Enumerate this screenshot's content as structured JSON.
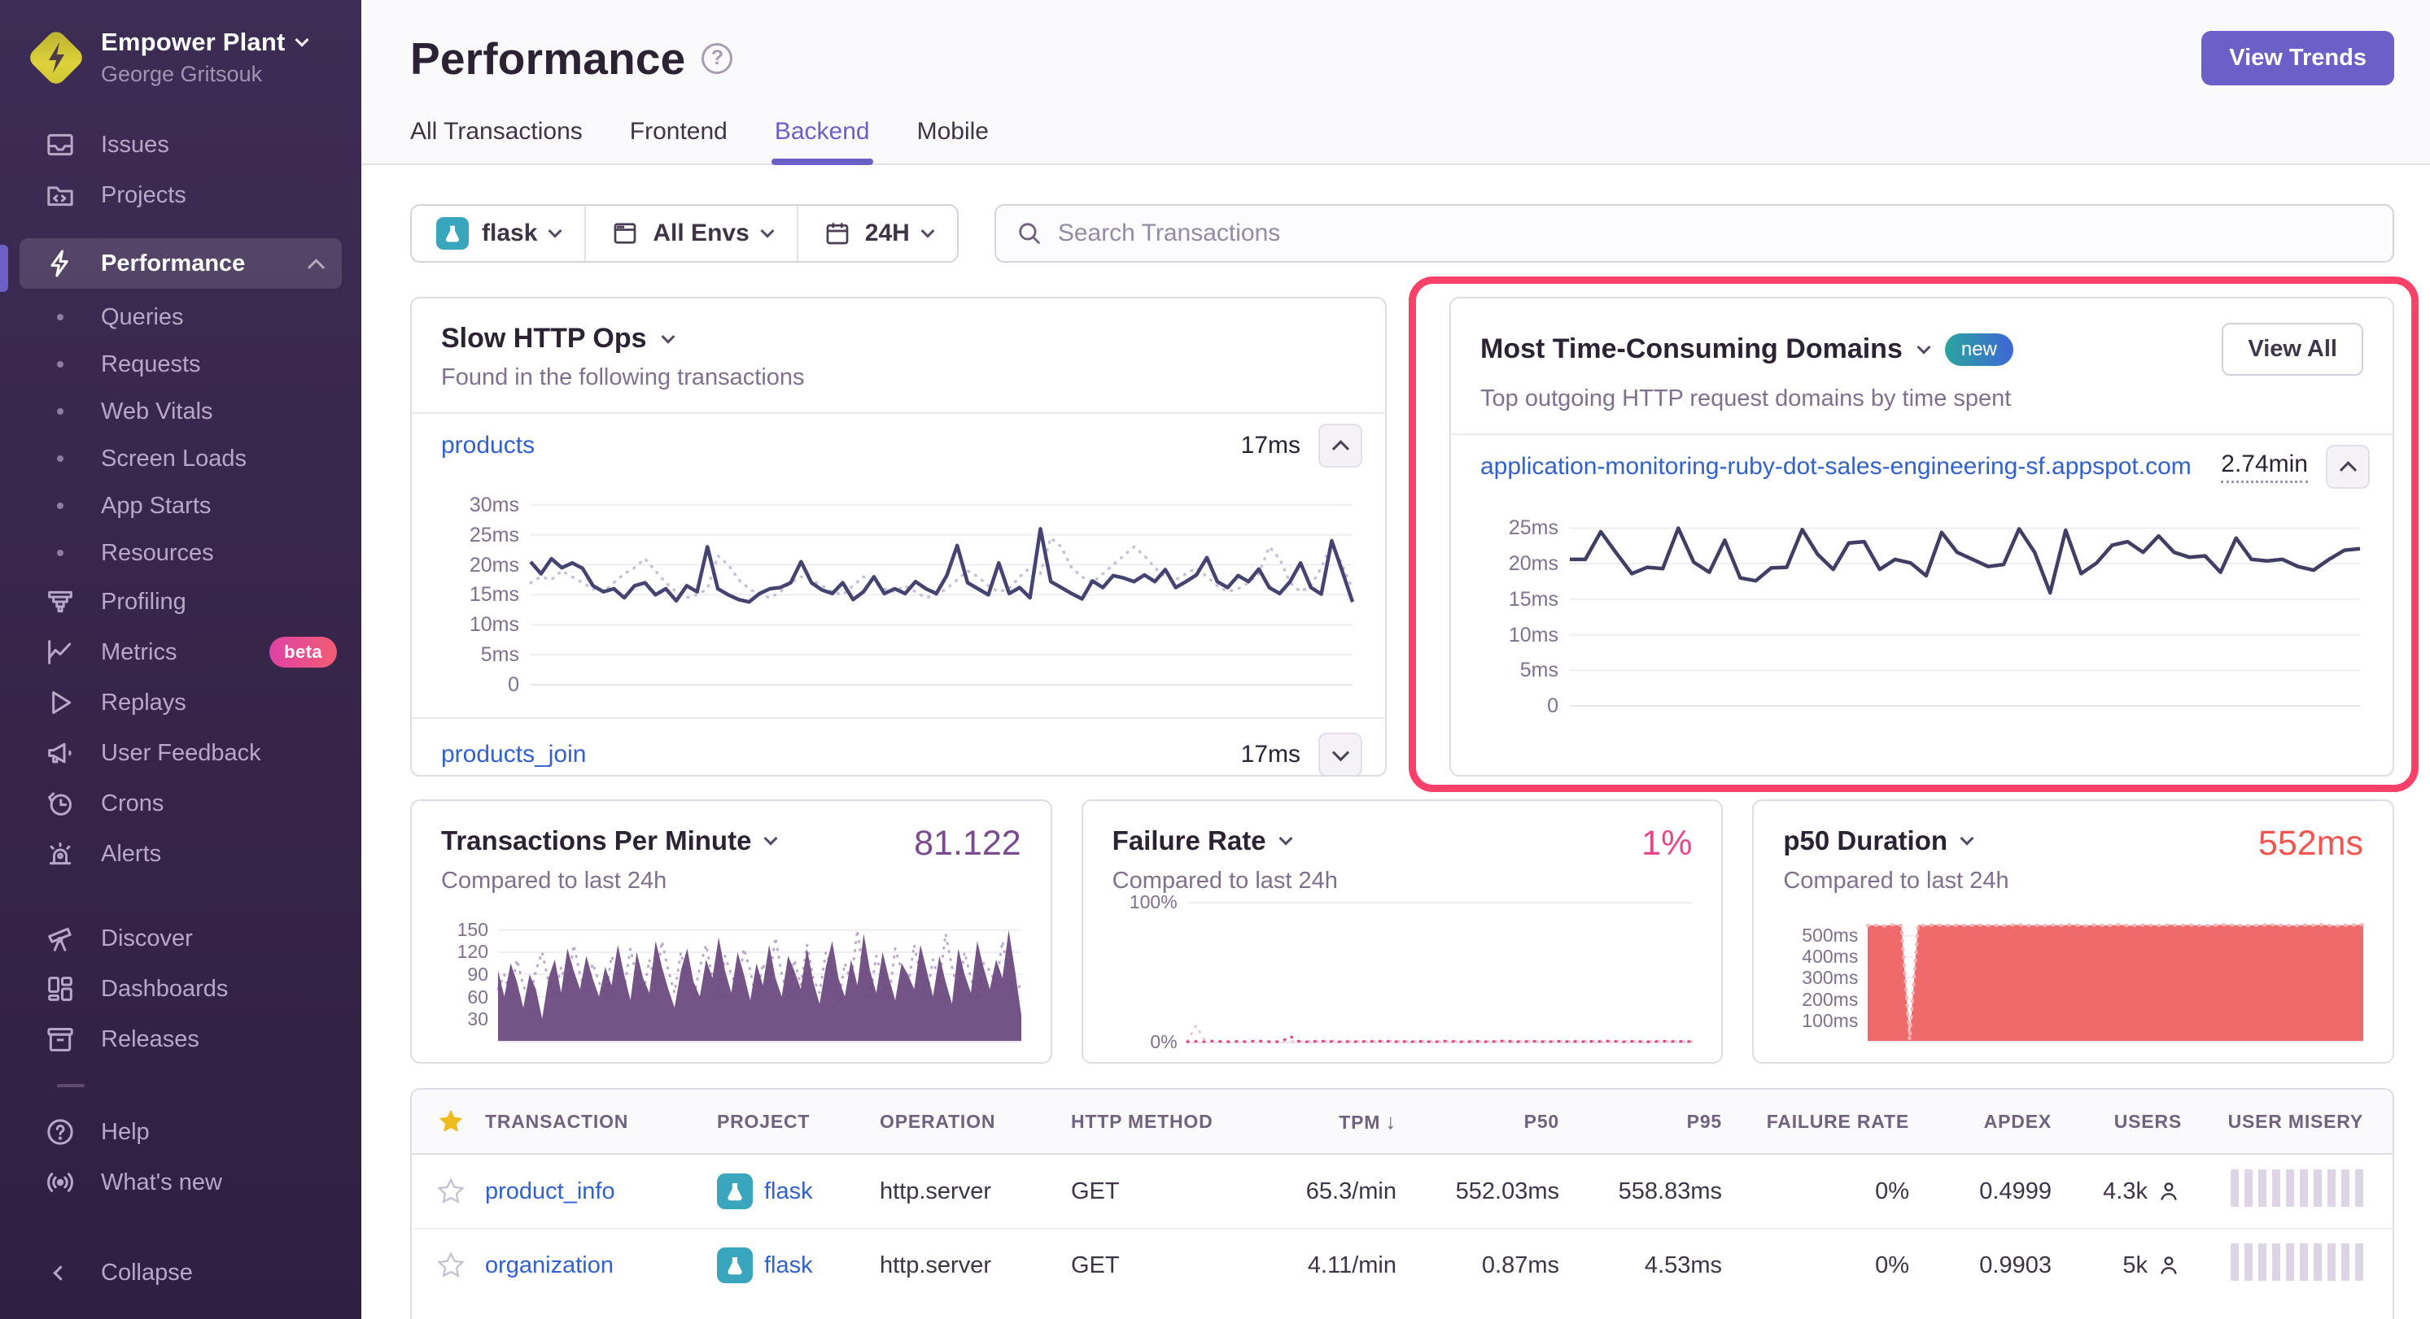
{
  "colors": {
    "accent": "#6C5FC7",
    "annotation": "#fb4168",
    "link": "#3161d1",
    "sidebar_bg": "#362549",
    "chart_line": "#454371",
    "chart_prev": "#c9bfd8",
    "tpm_fill": "#6d4a80",
    "failure_pink": "#e1407c",
    "p50_red": "#ee5d5d"
  },
  "sidebar": {
    "org_name": "Empower Plant",
    "user_name": "George Gritsouk",
    "items": {
      "issues": "Issues",
      "projects": "Projects",
      "performance": "Performance",
      "queries": "Queries",
      "requests": "Requests",
      "web_vitals": "Web Vitals",
      "screen_loads": "Screen Loads",
      "app_starts": "App Starts",
      "resources": "Resources",
      "profiling": "Profiling",
      "metrics": "Metrics",
      "metrics_badge": "beta",
      "replays": "Replays",
      "user_feedback": "User Feedback",
      "crons": "Crons",
      "alerts": "Alerts",
      "discover": "Discover",
      "dashboards": "Dashboards",
      "releases": "Releases",
      "help": "Help",
      "whats_new": "What's new",
      "collapse": "Collapse"
    }
  },
  "header": {
    "title": "Performance",
    "view_trends": "View Trends",
    "tabs": [
      "All Transactions",
      "Frontend",
      "Backend",
      "Mobile"
    ],
    "active_tab": "Backend"
  },
  "filters": {
    "project": "flask",
    "env": "All Envs",
    "period": "24H",
    "search_placeholder": "Search Transactions"
  },
  "slow_http": {
    "title": "Slow HTTP Ops",
    "subtitle": "Found in the following transactions",
    "rows": [
      {
        "name": "products",
        "value": "17ms"
      },
      {
        "name": "products_join",
        "value": "17ms"
      }
    ],
    "chart": {
      "type": "line",
      "ymax": 32,
      "yticks": [
        {
          "value": 30,
          "label": "30ms"
        },
        {
          "value": 25,
          "label": "25ms"
        },
        {
          "value": 20,
          "label": "20ms"
        },
        {
          "value": 15,
          "label": "15ms"
        },
        {
          "value": 10,
          "label": "10ms"
        },
        {
          "value": 5,
          "label": "5ms"
        },
        {
          "value": 0,
          "label": "0"
        }
      ],
      "series": [
        {
          "name": "previous period",
          "dashed": true,
          "color": "#c9bfd8",
          "width": 3.5,
          "values": [
            17,
            18,
            17.5,
            19,
            18,
            17,
            16,
            15.5,
            17,
            18.5,
            19.5,
            21,
            19,
            17,
            15.5,
            14.5,
            15,
            16,
            21.5,
            20,
            17.5,
            16,
            15,
            14.5,
            15.5,
            17,
            18,
            17.5,
            16.5,
            15.5,
            15,
            16.5,
            18,
            17,
            16,
            15.5,
            16.5,
            15.5,
            14.5,
            15,
            16,
            17.5,
            19,
            18,
            16.5,
            15.5,
            16,
            18,
            19.5,
            18.5,
            24.5,
            23,
            19.5,
            18,
            17,
            18.5,
            20,
            21.5,
            23,
            21.5,
            19.5,
            18,
            17.5,
            18.5,
            19.5,
            18,
            16.5,
            15.5,
            16,
            17,
            18.5,
            23,
            21,
            17,
            15.5,
            16.5,
            19.5,
            23.5,
            20,
            16
          ]
        },
        {
          "name": "current",
          "color": "#454371",
          "width": 4.5,
          "values": [
            20.5,
            18.5,
            21,
            19.5,
            20.3,
            19.4,
            16.5,
            15.5,
            16,
            14.5,
            16.5,
            17,
            15,
            16,
            14,
            16.5,
            15.5,
            23,
            16,
            15,
            14.2,
            13.8,
            15.2,
            16,
            16.2,
            17,
            20.5,
            17,
            15.8,
            15.2,
            17,
            14.2,
            15.5,
            18,
            15.2,
            16,
            15.2,
            17.2,
            16,
            15.2,
            18.2,
            23.2,
            17,
            16,
            15,
            20.3,
            15.2,
            16.2,
            14.5,
            26,
            17.2,
            16.2,
            15.2,
            14.3,
            17.3,
            16.2,
            18.2,
            17.8,
            17.2,
            18.3,
            17.2,
            19.2,
            16.2,
            17.2,
            18.3,
            21.2,
            17.2,
            16.2,
            18.2,
            17.2,
            19.3,
            16.2,
            15.2,
            17.2,
            20.3,
            16.2,
            15.1,
            24,
            19,
            13.8
          ]
        }
      ]
    }
  },
  "domains": {
    "title": "Most Time-Consuming Domains",
    "badge": "new",
    "view_all": "View All",
    "subtitle": "Top outgoing HTTP request domains by time spent",
    "rows": [
      {
        "name": "application-monitoring-ruby-dot-sales-engineering-sf.appspot.com",
        "value": "2.74min"
      }
    ],
    "chart": {
      "type": "line",
      "ymax": 27,
      "yticks": [
        {
          "value": 25,
          "label": "25ms"
        },
        {
          "value": 20,
          "label": "20ms"
        },
        {
          "value": 15,
          "label": "15ms"
        },
        {
          "value": 10,
          "label": "10ms"
        },
        {
          "value": 5,
          "label": "5ms"
        },
        {
          "value": 0,
          "label": "0"
        }
      ],
      "series": [
        {
          "name": "current",
          "color": "#413e66",
          "width": 4.5,
          "values": [
            20.6,
            20.6,
            24.5,
            21.5,
            18.6,
            19.5,
            19.3,
            25,
            20.2,
            18.8,
            23.3,
            18,
            17.6,
            19.4,
            19.5,
            24.8,
            21.3,
            19.2,
            22.9,
            23.1,
            19.2,
            20.6,
            20.1,
            18.3,
            24.4,
            21.6,
            20.6,
            19.6,
            19.9,
            24.9,
            21.6,
            15.9,
            24.7,
            18.6,
            20.1,
            22.6,
            23.1,
            21.6,
            23.9,
            21.6,
            20.9,
            21.1,
            18.8,
            23.6,
            20.6,
            20.4,
            20.6,
            19.6,
            19.1,
            20.6,
            21.9,
            22.1
          ]
        }
      ]
    }
  },
  "cards": [
    {
      "title": "Transactions Per Minute",
      "value": "81.122",
      "value_color": "#7a4b91",
      "subtitle": "Compared to last 24h",
      "chart": {
        "type": "area",
        "ymax": 165,
        "yticks": [
          {
            "value": 150,
            "label": "150"
          },
          {
            "value": 120,
            "label": "120"
          },
          {
            "value": 90,
            "label": "90"
          },
          {
            "value": 60,
            "label": "60"
          },
          {
            "value": 30,
            "label": "30"
          }
        ],
        "series": [
          {
            "name": "previous period",
            "dashed": true,
            "color": "#bca6cb",
            "width": 3,
            "values": [
              70,
              90,
              60,
              110,
              75,
              55,
              95,
              120,
              80,
              60,
              100,
              70,
              130,
              90,
              65,
              105,
              80,
              55,
              115,
              95,
              70,
              125,
              85,
              60,
              110,
              75,
              135,
              95,
              65,
              120,
              80,
              55,
              100,
              130,
              85,
              60,
              115,
              90,
              70,
              125,
              95,
              55,
              105,
              80,
              140,
              90,
              60,
              110,
              75,
              130,
              85,
              65,
              120,
              95,
              50,
              105,
              80,
              150,
              90,
              60,
              115,
              85,
              55,
              125,
              95,
              70,
              130,
              90,
              60,
              110,
              80,
              145,
              100,
              65,
              120,
              85,
              55,
              105,
              95,
              75,
              135,
              90,
              60,
              80
            ]
          },
          {
            "name": "current",
            "fill": true,
            "color": "#6d4a80",
            "opacity": 0.95,
            "values": [
              95,
              60,
              105,
              80,
              45,
              90,
              70,
              30,
              85,
              110,
              65,
              125,
              95,
              70,
              115,
              85,
              60,
              100,
              75,
              130,
              90,
              55,
              120,
              85,
              65,
              135,
              100,
              70,
              45,
              95,
              125,
              80,
              60,
              110,
              85,
              140,
              95,
              65,
              120,
              90,
              55,
              105,
              75,
              130,
              85,
              60,
              115,
              95,
              70,
              125,
              80,
              50,
              100,
              135,
              85,
              60,
              110,
              75,
              145,
              95,
              65,
              120,
              85,
              55,
              105,
              90,
              70,
              130,
              95,
              60,
              115,
              80,
              50,
              125,
              90,
              65,
              135,
              100,
              70,
              110,
              85,
              150,
              95,
              35
            ]
          }
        ]
      }
    },
    {
      "title": "Failure Rate",
      "value": "1%",
      "value_color": "#e8468b",
      "subtitle": "Compared to last 24h",
      "chart": {
        "type": "line",
        "ymax": 100,
        "yticks": [
          {
            "value": 100,
            "label": "100%"
          },
          {
            "value": 0,
            "label": "0%"
          }
        ],
        "series": [
          {
            "name": "previous period",
            "dashed": true,
            "color": "#eec0d4",
            "width": 3,
            "values": [
              1,
              12,
              2,
              1,
              0.8,
              1.2,
              0.9,
              0.7,
              1,
              0.8,
              0.9,
              1.1,
              0.8,
              0.7,
              1,
              0.9,
              0.8,
              1.2,
              0.7,
              0.9,
              1,
              0.8,
              0.7,
              0.9,
              1.1,
              0.8,
              0.9,
              0.7,
              1,
              0.8,
              0.9,
              1.2,
              0.8,
              0.7,
              0.9,
              1,
              0.8,
              0.9,
              0.7,
              1.1,
              0.9,
              0.8,
              1,
              0.7,
              0.9,
              0.8,
              1.2,
              0.9,
              0.7,
              0.8,
              1,
              0.9,
              0.8,
              0.7,
              0.9,
              1.1,
              0.8,
              0.9,
              0.7,
              0.8
            ]
          },
          {
            "name": "current",
            "dashed": true,
            "color": "#e1407c",
            "width": 3,
            "values": [
              0.5,
              0.8,
              0.6,
              1,
              0.7,
              0.5,
              0.9,
              0.6,
              1.2,
              0.8,
              0.5,
              0.7,
              4.5,
              0.9,
              0.6,
              0.8,
              1,
              0.7,
              0.5,
              0.8,
              0.6,
              0.9,
              0.7,
              1.1,
              0.6,
              0.8,
              0.5,
              0.9,
              0.7,
              0.6,
              1,
              0.8,
              0.6,
              0.7,
              0.9,
              0.5,
              0.8,
              1.2,
              0.7,
              0.6,
              0.9,
              0.8,
              0.5,
              1,
              0.7,
              0.8,
              0.6,
              0.9,
              0.7,
              1.1,
              0.8,
              0.6,
              0.9,
              0.7,
              0.5,
              0.8,
              1,
              0.7,
              0.9,
              0.6
            ]
          }
        ]
      }
    },
    {
      "title": "p50 Duration",
      "value": "552ms",
      "value_color": "#f05550",
      "subtitle": "Compared to last 24h",
      "chart": {
        "type": "area",
        "ymax": 580,
        "yticks": [
          {
            "value": 500,
            "label": "500ms"
          },
          {
            "value": 400,
            "label": "400ms"
          },
          {
            "value": 300,
            "label": "300ms"
          },
          {
            "value": 200,
            "label": "200ms"
          },
          {
            "value": 100,
            "label": "100ms"
          }
        ],
        "series": [
          {
            "name": "current",
            "fill": true,
            "color": "#ee5d5d",
            "opacity": 0.92,
            "edge": "#f6b4b4",
            "values": [
              548,
              550,
              547,
              552,
              549,
              5,
              551,
              548,
              552,
              550,
              549,
              551,
              548,
              552,
              549,
              550,
              548,
              551,
              552,
              549,
              550,
              548,
              551,
              549,
              552,
              550,
              548,
              551,
              549,
              550,
              552,
              548,
              549,
              551,
              550,
              548,
              552,
              549,
              551,
              550,
              548,
              549,
              552,
              551,
              550,
              548,
              549,
              551,
              552,
              550,
              549,
              548,
              551,
              550,
              552,
              549,
              548,
              550,
              551,
              552
            ]
          }
        ]
      }
    }
  ],
  "table": {
    "columns": [
      "TRANSACTION",
      "PROJECT",
      "OPERATION",
      "HTTP METHOD",
      "TPM",
      "P50",
      "P95",
      "FAILURE RATE",
      "APDEX",
      "USERS",
      "USER MISERY"
    ],
    "sorted_column": "TPM",
    "rows": [
      {
        "transaction": "product_info",
        "project": "flask",
        "operation": "http.server",
        "http_method": "GET",
        "tpm": "65.3/min",
        "p50": "552.03ms",
        "p95": "558.83ms",
        "failure_rate": "0%",
        "apdex": "0.4999",
        "users": "4.3k"
      },
      {
        "transaction": "organization",
        "project": "flask",
        "operation": "http.server",
        "http_method": "GET",
        "tpm": "4.11/min",
        "p50": "0.87ms",
        "p95": "4.53ms",
        "failure_rate": "0%",
        "apdex": "0.9903",
        "users": "5k"
      }
    ]
  }
}
